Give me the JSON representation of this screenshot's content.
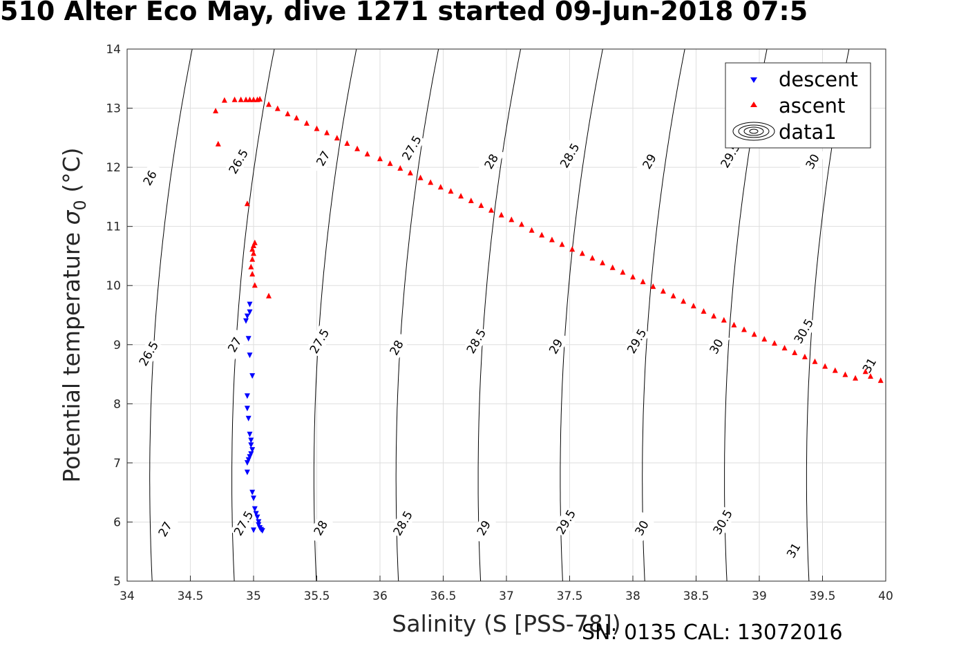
{
  "title": "510 Alter Eco May, dive 1271 started 09-Jun-2018 07:5",
  "footer": "SN: 0135  CAL: 13072016",
  "chart_data": {
    "type": "scatter",
    "xlabel": "Salinity (S [PSS-78])",
    "ylabel_main": "Potential temperature ",
    "ylabel_sigma": "σ",
    "ylabel_sub": "0",
    "ylabel_unit": " (°C)",
    "xlim": [
      34,
      40
    ],
    "ylim": [
      5,
      14
    ],
    "xticks": [
      34,
      34.5,
      35,
      35.5,
      36,
      36.5,
      37,
      37.5,
      38,
      38.5,
      39,
      39.5,
      40
    ],
    "xtick_labels": [
      "34",
      "34.5",
      "35",
      "35.5",
      "36",
      "36.5",
      "37",
      "37.5",
      "38",
      "38.5",
      "39",
      "39.5",
      "40"
    ],
    "yticks": [
      5,
      6,
      7,
      8,
      9,
      10,
      11,
      12,
      13,
      14
    ],
    "ytick_labels": [
      "5",
      "6",
      "7",
      "8",
      "9",
      "10",
      "11",
      "12",
      "13",
      "14"
    ],
    "grid": true,
    "legend": {
      "placement": "top-right",
      "entries": [
        {
          "label": "descent",
          "marker": "triangle-down",
          "color": "#0000ff"
        },
        {
          "label": "ascent",
          "marker": "triangle-up",
          "color": "#ff0000"
        },
        {
          "label": "data1",
          "marker": "contour",
          "color": "#000000"
        }
      ]
    },
    "series": [
      {
        "name": "descent",
        "marker": "triangle-down",
        "color": "#0000ff",
        "points": [
          [
            34.97,
            9.68
          ],
          [
            34.97,
            9.55
          ],
          [
            34.95,
            9.48
          ],
          [
            34.94,
            9.4
          ],
          [
            34.96,
            9.1
          ],
          [
            34.97,
            8.82
          ],
          [
            34.99,
            8.47
          ],
          [
            34.95,
            8.13
          ],
          [
            34.95,
            7.92
          ],
          [
            34.96,
            7.75
          ],
          [
            34.97,
            7.48
          ],
          [
            34.98,
            7.38
          ],
          [
            34.98,
            7.3
          ],
          [
            34.99,
            7.22
          ],
          [
            34.98,
            7.15
          ],
          [
            34.97,
            7.1
          ],
          [
            34.96,
            7.05
          ],
          [
            34.95,
            7.0
          ],
          [
            34.95,
            6.84
          ],
          [
            34.99,
            6.5
          ],
          [
            35.0,
            6.4
          ],
          [
            35.01,
            6.22
          ],
          [
            35.02,
            6.14
          ],
          [
            35.03,
            6.08
          ],
          [
            35.04,
            6.0
          ],
          [
            35.04,
            5.95
          ],
          [
            35.05,
            5.9
          ],
          [
            35.06,
            5.87
          ],
          [
            35.07,
            5.85
          ],
          [
            35.0,
            5.86
          ]
        ]
      },
      {
        "name": "ascent",
        "marker": "triangle-up",
        "color": "#ff0000",
        "points": [
          [
            35.12,
            9.83
          ],
          [
            35.01,
            10.01
          ],
          [
            34.99,
            10.2
          ],
          [
            34.98,
            10.32
          ],
          [
            34.99,
            10.45
          ],
          [
            35.0,
            10.55
          ],
          [
            34.99,
            10.62
          ],
          [
            35.0,
            10.68
          ],
          [
            35.01,
            10.73
          ],
          [
            34.95,
            11.39
          ],
          [
            34.72,
            12.4
          ],
          [
            34.7,
            12.96
          ],
          [
            34.77,
            13.14
          ],
          [
            34.85,
            13.15
          ],
          [
            34.9,
            13.15
          ],
          [
            34.94,
            13.15
          ],
          [
            34.97,
            13.15
          ],
          [
            35.0,
            13.15
          ],
          [
            35.03,
            13.15
          ],
          [
            35.05,
            13.16
          ],
          [
            35.12,
            13.07
          ],
          [
            35.19,
            13.0
          ],
          [
            35.27,
            12.91
          ],
          [
            35.34,
            12.84
          ],
          [
            35.42,
            12.75
          ],
          [
            35.5,
            12.66
          ],
          [
            35.58,
            12.59
          ],
          [
            35.66,
            12.5
          ],
          [
            35.74,
            12.41
          ],
          [
            35.82,
            12.32
          ],
          [
            35.9,
            12.23
          ],
          [
            36.0,
            12.15
          ],
          [
            36.08,
            12.07
          ],
          [
            36.16,
            11.99
          ],
          [
            36.24,
            11.91
          ],
          [
            36.32,
            11.83
          ],
          [
            36.4,
            11.75
          ],
          [
            36.48,
            11.67
          ],
          [
            36.56,
            11.6
          ],
          [
            36.64,
            11.52
          ],
          [
            36.72,
            11.44
          ],
          [
            36.8,
            11.36
          ],
          [
            36.88,
            11.28
          ],
          [
            36.96,
            11.2
          ],
          [
            37.04,
            11.12
          ],
          [
            37.12,
            11.04
          ],
          [
            37.2,
            10.94
          ],
          [
            37.28,
            10.86
          ],
          [
            37.36,
            10.78
          ],
          [
            37.44,
            10.7
          ],
          [
            37.52,
            10.62
          ],
          [
            37.6,
            10.55
          ],
          [
            37.68,
            10.47
          ],
          [
            37.76,
            10.39
          ],
          [
            37.84,
            10.31
          ],
          [
            37.92,
            10.23
          ],
          [
            38.0,
            10.15
          ],
          [
            38.08,
            10.07
          ],
          [
            38.16,
            9.99
          ],
          [
            38.24,
            9.91
          ],
          [
            38.32,
            9.83
          ],
          [
            38.4,
            9.74
          ],
          [
            38.48,
            9.66
          ],
          [
            38.56,
            9.57
          ],
          [
            38.64,
            9.49
          ],
          [
            38.72,
            9.42
          ],
          [
            38.8,
            9.34
          ],
          [
            38.88,
            9.26
          ],
          [
            38.96,
            9.18
          ],
          [
            39.04,
            9.1
          ],
          [
            39.12,
            9.03
          ],
          [
            39.2,
            8.95
          ],
          [
            39.28,
            8.87
          ],
          [
            39.36,
            8.8
          ],
          [
            39.44,
            8.72
          ],
          [
            39.52,
            8.64
          ],
          [
            39.6,
            8.57
          ],
          [
            39.68,
            8.5
          ],
          [
            39.76,
            8.44
          ],
          [
            39.84,
            8.55
          ],
          [
            39.88,
            8.47
          ],
          [
            39.96,
            8.4
          ]
        ]
      }
    ],
    "contour_levels": [
      26,
      26.5,
      27,
      27.5,
      28,
      28.5,
      29,
      29.5,
      30,
      30.5,
      31
    ],
    "contour_labels": [
      {
        "text": "26",
        "S": 34.18,
        "T": 11.82
      },
      {
        "text": "26.5",
        "S": 34.88,
        "T": 12.1
      },
      {
        "text": "27",
        "S": 35.55,
        "T": 12.15
      },
      {
        "text": "27.5",
        "S": 36.25,
        "T": 12.33
      },
      {
        "text": "28",
        "S": 36.88,
        "T": 12.1
      },
      {
        "text": "28.5",
        "S": 37.5,
        "T": 12.2
      },
      {
        "text": "29",
        "S": 38.13,
        "T": 12.1
      },
      {
        "text": "29.5",
        "S": 38.77,
        "T": 12.2
      },
      {
        "text": "30",
        "S": 39.42,
        "T": 12.1
      },
      {
        "text": "26.5",
        "S": 34.17,
        "T": 8.85
      },
      {
        "text": "27",
        "S": 34.85,
        "T": 9.0
      },
      {
        "text": "27.5",
        "S": 35.52,
        "T": 9.06
      },
      {
        "text": "28",
        "S": 36.13,
        "T": 8.95
      },
      {
        "text": "28.5",
        "S": 36.76,
        "T": 9.06
      },
      {
        "text": "29",
        "S": 37.39,
        "T": 8.97
      },
      {
        "text": "29.5",
        "S": 38.03,
        "T": 9.06
      },
      {
        "text": "30",
        "S": 38.66,
        "T": 8.97
      },
      {
        "text": "30.5",
        "S": 39.35,
        "T": 9.23
      },
      {
        "text": "31",
        "S": 39.87,
        "T": 8.65
      },
      {
        "text": "27",
        "S": 34.3,
        "T": 5.88
      },
      {
        "text": "27.5",
        "S": 34.92,
        "T": 5.98
      },
      {
        "text": "28",
        "S": 35.53,
        "T": 5.9
      },
      {
        "text": "28.5",
        "S": 36.18,
        "T": 5.98
      },
      {
        "text": "29",
        "S": 36.82,
        "T": 5.9
      },
      {
        "text": "29.5",
        "S": 37.47,
        "T": 6.0
      },
      {
        "text": "30",
        "S": 38.07,
        "T": 5.9
      },
      {
        "text": "30.5",
        "S": 38.71,
        "T": 6.0
      },
      {
        "text": "31",
        "S": 39.27,
        "T": 5.52
      }
    ]
  }
}
